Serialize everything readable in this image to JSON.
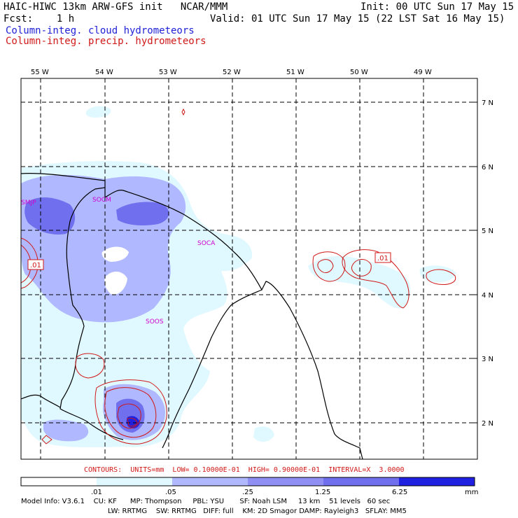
{
  "header": {
    "title": "HAIC-HIWC 13km ARW-GFS init   NCAR/MMM",
    "init": "Init: 00 UTC Sun 17 May 15",
    "fcst": "Fcst:    1 h",
    "valid": "Valid: 01 UTC Sun 17 May 15 (22 LST Sat 16 May 15)",
    "field1": "Column-integ. cloud hydrometeors",
    "field2": "Column-integ. precip. hydrometeors"
  },
  "map": {
    "lon_labels": [
      "55 W",
      "54 W",
      "53 W",
      "52 W",
      "51 W",
      "50 W",
      "49 W"
    ],
    "lat_labels": [
      "7 N",
      "6 N",
      "5 N",
      "4 N",
      "3 N",
      "2 N"
    ],
    "stations": [
      "SMJP",
      "SOCM",
      "SOCA",
      "SOOS"
    ],
    "contour_labels": [
      ".01",
      ".01"
    ],
    "colors": {
      "shade_light": "#e0f8ff",
      "shade_1": "#b0b8ff",
      "shade_2": "#7070ee",
      "shade_3": "#2020e0",
      "contour": "#d01818",
      "station": "#d000d0"
    }
  },
  "contours_info": "CONTOURS:  UNITS=mm  LOW= 0.10000E-01  HIGH= 0.90000E-01  INTERVAL=X  3.0000",
  "colorbar": {
    "labels": [
      ".01",
      ".05",
      ".25",
      "1.25",
      "6.25"
    ],
    "unit": "mm",
    "colors": [
      "#ffffff",
      "#e0f8ff",
      "#b0b8ff",
      "#7070ee",
      "#2020e0"
    ]
  },
  "footer": {
    "line1": "Model Info: V3.6.1    CU: KF      MP: Thompson     PBL: YSU       SF: Noah LSM     13 km    51 levels   60 sec",
    "line2": "LW: RRTMG    SW: RRTMG   DIFF: full    KM: 2D Smagor DAMP: Rayleigh3   SFLAY: MM5"
  }
}
